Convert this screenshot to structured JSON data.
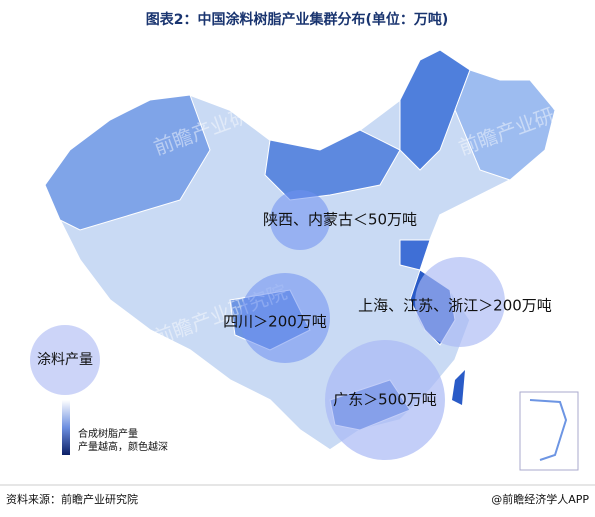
{
  "title": "图表2：中国涂料树脂产业集群分布(单位：万吨)",
  "map": {
    "clusters": [
      {
        "label": "陕西、内蒙古＜50万吨"
      },
      {
        "label": "四川＞200万吨"
      },
      {
        "label": "上海、江苏、浙江＞200万吨"
      },
      {
        "label": "广东＞500万吨"
      }
    ],
    "legend": {
      "bubble": "涂料产量",
      "gradient_title": "合成树脂产量",
      "gradient_note": "产量越高，颜色越深"
    },
    "watermark": "前瞻产业研究院"
  },
  "source": "资料来源：前瞻产业研究院",
  "brand": "@前瞻经济学人APP"
}
